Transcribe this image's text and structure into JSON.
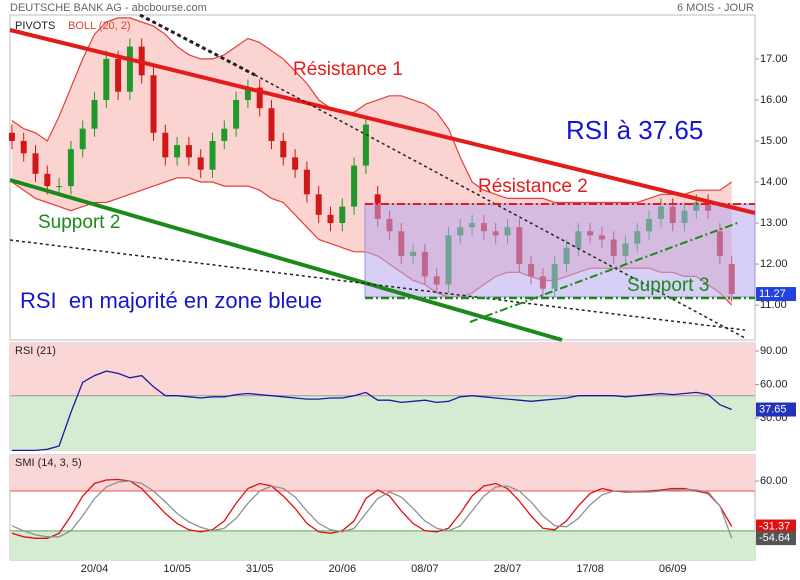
{
  "chart_data": [
    {
      "type": "candlestick",
      "title": "DEUTSCHE BANK AG - abcbourse.com",
      "period": "6 MOIS - JOUR",
      "pivots_label": "PIVOTS",
      "categories": [
        null,
        null,
        null,
        null,
        null,
        null,
        null,
        "20/04",
        null,
        null,
        null,
        null,
        null,
        null,
        "10/05",
        null,
        null,
        null,
        null,
        null,
        null,
        "31/05",
        null,
        null,
        null,
        null,
        null,
        null,
        "20/06",
        null,
        null,
        null,
        null,
        null,
        null,
        "08/07",
        null,
        null,
        null,
        null,
        null,
        null,
        "28/07",
        null,
        null,
        null,
        null,
        null,
        null,
        "17/08",
        null,
        null,
        null,
        null,
        null,
        null,
        "06/09",
        null,
        null,
        null,
        null,
        null
      ],
      "open": [
        15.2,
        15.0,
        14.7,
        14.2,
        13.9,
        13.9,
        14.8,
        15.3,
        16.0,
        17.0,
        16.2,
        17.3,
        16.6,
        15.2,
        14.6,
        14.9,
        14.6,
        14.3,
        15.0,
        15.3,
        16.0,
        16.3,
        15.8,
        15.0,
        14.6,
        14.3,
        13.7,
        13.2,
        13.0,
        13.4,
        14.4,
        13.7,
        13.1,
        12.8,
        12.2,
        12.3,
        11.7,
        11.5,
        12.7,
        12.9,
        13.0,
        12.8,
        12.7,
        12.9,
        12.0,
        11.7,
        11.4,
        12.0,
        12.4,
        12.8,
        12.7,
        12.6,
        12.2,
        12.5,
        12.8,
        13.1,
        13.4,
        13.0,
        13.3,
        13.5,
        12.8,
        12.0
      ],
      "high": [
        15.4,
        15.2,
        14.9,
        14.4,
        14.1,
        15.0,
        15.5,
        16.2,
        17.2,
        17.2,
        17.5,
        17.5,
        16.8,
        15.4,
        15.1,
        15.1,
        14.8,
        15.2,
        15.5,
        16.2,
        16.5,
        16.5,
        16.0,
        15.2,
        14.8,
        14.5,
        13.9,
        13.4,
        13.6,
        14.6,
        15.6,
        13.9,
        13.3,
        13.0,
        12.5,
        12.5,
        11.9,
        12.9,
        13.1,
        13.2,
        13.2,
        13.0,
        13.1,
        13.1,
        12.2,
        11.9,
        12.2,
        12.6,
        13.0,
        13.0,
        12.9,
        12.8,
        12.7,
        13.0,
        13.3,
        13.6,
        13.6,
        13.5,
        13.7,
        13.7,
        13.0,
        12.2
      ],
      "low": [
        14.8,
        14.5,
        14.0,
        13.7,
        13.7,
        13.7,
        14.6,
        15.1,
        15.8,
        16.0,
        16.0,
        16.4,
        15.0,
        14.4,
        14.4,
        14.4,
        14.1,
        14.1,
        14.8,
        15.1,
        15.8,
        15.6,
        14.8,
        14.4,
        14.1,
        13.5,
        13.0,
        12.8,
        12.8,
        13.2,
        14.2,
        12.9,
        12.6,
        12.0,
        12.0,
        11.5,
        11.3,
        11.3,
        12.5,
        12.7,
        12.6,
        12.5,
        12.5,
        11.8,
        11.5,
        11.2,
        11.2,
        11.8,
        12.2,
        12.5,
        12.4,
        12.0,
        12.0,
        12.3,
        12.6,
        12.9,
        12.8,
        12.8,
        13.1,
        13.1,
        12.0,
        11.1
      ],
      "close": [
        15.0,
        14.7,
        14.2,
        13.9,
        13.9,
        14.8,
        15.3,
        16.0,
        17.0,
        16.2,
        17.3,
        16.6,
        15.2,
        14.6,
        14.9,
        14.6,
        14.3,
        15.0,
        15.3,
        16.0,
        16.3,
        15.8,
        15.0,
        14.6,
        14.3,
        13.7,
        13.2,
        13.0,
        13.4,
        14.4,
        15.4,
        13.1,
        12.8,
        12.2,
        12.3,
        11.7,
        11.5,
        12.7,
        12.9,
        13.0,
        12.8,
        12.7,
        12.9,
        12.0,
        11.7,
        11.4,
        12.0,
        12.4,
        12.8,
        12.7,
        12.6,
        12.2,
        12.5,
        12.8,
        13.1,
        13.4,
        13.0,
        13.3,
        13.5,
        13.3,
        12.2,
        11.27
      ],
      "color_up": "#1f9a2a",
      "color_down": "#d01818",
      "bands": {
        "name": "BOLL (20, 2)",
        "color": "#e0403c",
        "fill": "#fbd3d1",
        "upper": [
          15.5,
          15.3,
          15.2,
          15.0,
          15.6,
          16.3,
          17.0,
          17.6,
          17.9,
          18.0,
          18.0,
          17.9,
          17.8,
          17.6,
          17.3,
          17.1,
          17.0,
          17.0,
          17.1,
          17.3,
          17.5,
          17.4,
          17.2,
          17.0,
          16.7,
          16.4,
          16.0,
          15.8,
          15.7,
          15.7,
          15.9,
          16.0,
          16.1,
          16.1,
          16.0,
          15.9,
          15.7,
          15.3,
          14.6,
          14.0,
          13.8,
          13.7,
          13.6,
          13.6,
          13.6,
          13.6,
          13.5,
          13.5,
          13.5,
          13.5,
          13.5,
          13.5,
          13.5,
          13.5,
          13.6,
          13.7,
          13.7,
          13.7,
          13.8,
          13.8,
          13.8,
          14.0
        ],
        "lower": [
          14.0,
          13.8,
          13.6,
          13.5,
          13.4,
          13.3,
          13.4,
          13.5,
          13.5,
          13.6,
          13.7,
          13.8,
          13.9,
          14.0,
          14.1,
          14.1,
          14.0,
          14.0,
          13.9,
          13.9,
          13.9,
          13.8,
          13.6,
          13.5,
          13.2,
          12.9,
          12.6,
          12.5,
          12.4,
          12.3,
          12.3,
          12.2,
          12.0,
          11.8,
          11.6,
          11.5,
          11.3,
          11.2,
          11.2,
          11.3,
          11.5,
          11.7,
          11.8,
          11.8,
          11.7,
          11.6,
          11.6,
          11.7,
          11.8,
          11.9,
          11.9,
          11.9,
          11.9,
          11.9,
          11.9,
          11.8,
          11.8,
          11.7,
          11.7,
          11.5,
          11.3,
          11.0
        ]
      },
      "ylim": [
        10.15,
        18.07
      ],
      "yticks": [
        {
          "value": 11,
          "label": "11.00"
        },
        {
          "value": 12,
          "label": "12.00"
        },
        {
          "value": 13,
          "label": "13.00"
        },
        {
          "value": 14,
          "label": "14.00"
        },
        {
          "value": 15,
          "label": "15.00"
        },
        {
          "value": 16,
          "label": "16.00"
        },
        {
          "value": 17,
          "label": "17.00"
        }
      ],
      "annotations": {
        "resistance_1": "Résistance 1",
        "resistance_2": "Résistance 2",
        "rsi_value": "RSI à 37.65",
        "support_2": "Support 2",
        "support_3": "Support 3",
        "rsi_note": "RSI  en majorité en zone bleue"
      }
    },
    {
      "type": "line",
      "title": "RSI (21)",
      "series": [
        {
          "color": "#1a1aa0",
          "values": [
            1,
            1,
            1,
            2,
            5,
            35,
            62,
            68,
            72,
            70,
            66,
            68,
            58,
            50,
            50,
            49,
            48,
            49,
            49,
            51,
            52,
            51,
            50,
            49,
            48,
            47,
            47,
            48,
            48,
            50,
            53,
            46,
            46,
            44,
            45,
            46,
            44,
            45,
            49,
            50,
            49,
            48,
            47,
            46,
            45,
            46,
            47,
            48,
            50,
            50,
            50,
            50,
            49,
            50,
            51,
            52,
            51,
            52,
            53,
            51,
            42,
            37.65
          ]
        }
      ],
      "zone_split": 50,
      "ylim": [
        1.4,
        97.2
      ],
      "yticks": [
        {
          "value": 30,
          "label": "30.00"
        },
        {
          "value": 60,
          "label": "60.00"
        },
        {
          "value": 90,
          "label": "90.00"
        }
      ]
    },
    {
      "type": "line",
      "title": "SMI (14, 3, 5)",
      "series": [
        {
          "color": "#e01010",
          "values": [
            -45,
            -52,
            -55,
            -55,
            -45,
            -10,
            30,
            55,
            62,
            63,
            60,
            45,
            20,
            -5,
            -25,
            -38,
            -42,
            -38,
            -20,
            15,
            45,
            55,
            50,
            30,
            5,
            -25,
            -42,
            -45,
            -40,
            -20,
            25,
            42,
            30,
            0,
            -25,
            -40,
            -42,
            -35,
            -5,
            30,
            50,
            55,
            45,
            20,
            -10,
            -35,
            -38,
            -20,
            10,
            35,
            45,
            40,
            38,
            38,
            40,
            42,
            45,
            45,
            40,
            35,
            10,
            -31.37
          ]
        },
        {
          "color": "#909090",
          "values": [
            -30,
            -40,
            -48,
            -52,
            -52,
            -40,
            -10,
            25,
            48,
            58,
            60,
            55,
            40,
            18,
            -5,
            -22,
            -33,
            -40,
            -35,
            -15,
            15,
            40,
            50,
            45,
            28,
            0,
            -25,
            -38,
            -42,
            -35,
            -5,
            25,
            38,
            28,
            5,
            -20,
            -35,
            -40,
            -30,
            0,
            30,
            48,
            50,
            40,
            18,
            -10,
            -30,
            -32,
            -15,
            12,
            32,
            40,
            40,
            38,
            38,
            40,
            42,
            43,
            42,
            38,
            10,
            -54.64
          ]
        }
      ],
      "zone_lines": [
        40,
        -40
      ],
      "ylim": [
        -98.6,
        112.3
      ],
      "yticks": [
        {
          "value": 60,
          "label": "60.00"
        }
      ]
    }
  ]
}
